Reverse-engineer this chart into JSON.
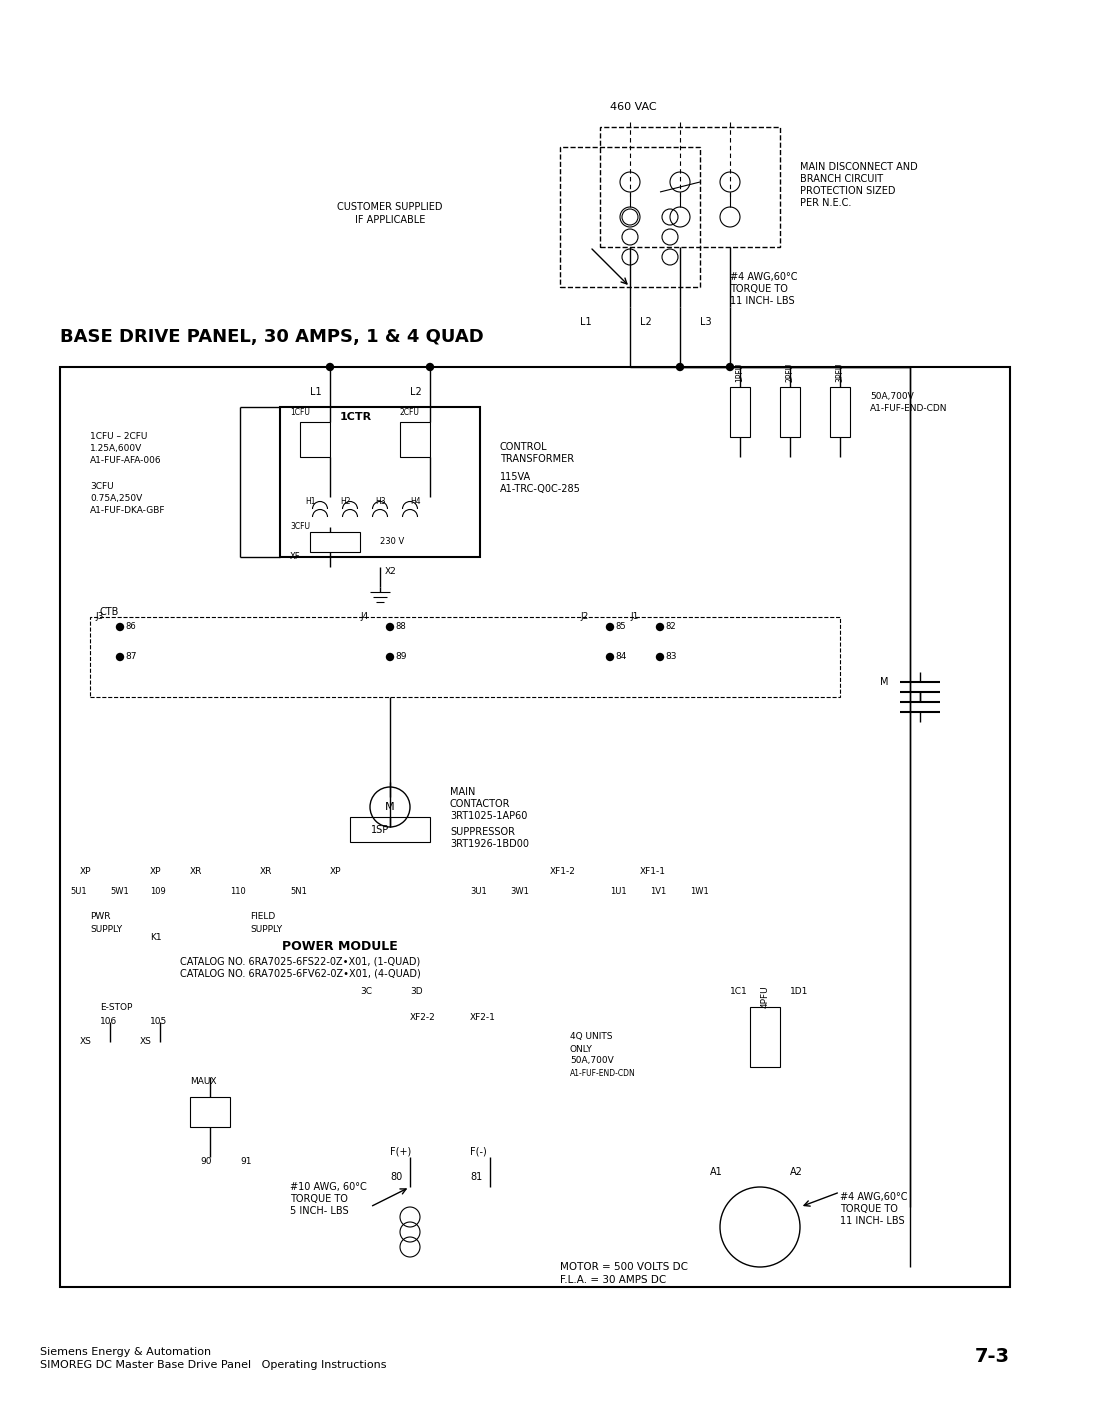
{
  "title": "BASE DRIVE PANEL, 30 AMPS, 1 & 4 QUAD",
  "footer_line1": "Siemens Energy & Automation",
  "footer_line2": "SIMOREG DC Master Base Drive Panel   Operating Instructions",
  "page_number": "7-3",
  "bg_color": "#ffffff",
  "line_color": "#000000",
  "title_fontsize": 13,
  "body_fontsize": 7,
  "small_fontsize": 6
}
